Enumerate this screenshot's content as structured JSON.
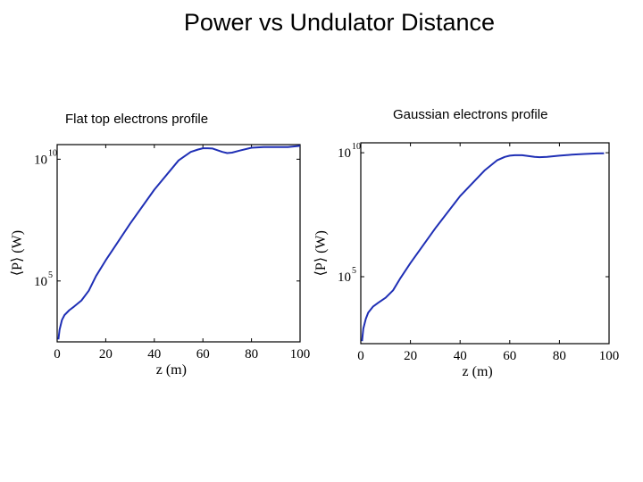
{
  "slide": {
    "title": "Power vs Undulator Distance"
  },
  "chart_data": [
    {
      "type": "line",
      "title": "Flat top electrons profile",
      "xlabel": "z (m)",
      "ylabel": "⟨P⟩ (W)",
      "xlim": [
        0,
        100
      ],
      "ylim_log10": [
        2.5,
        10.6
      ],
      "yscale": "log",
      "grid": false,
      "x_ticks": [
        0,
        20,
        40,
        60,
        80,
        100
      ],
      "x_tick_labels": [
        "0",
        "20",
        "40",
        "60",
        "80",
        "100"
      ],
      "y_ticks": [
        {
          "value": 5,
          "base": "10",
          "exp": "5"
        },
        {
          "value": 10,
          "base": "10",
          "exp": "10"
        }
      ],
      "series": [
        {
          "color": "#1f2fb5",
          "x": [
            0.5,
            1,
            2,
            3,
            5,
            7,
            10,
            13,
            16,
            20,
            30,
            40,
            50,
            55,
            58,
            60,
            62,
            64,
            66,
            68,
            70,
            72,
            75,
            80,
            85,
            90,
            95,
            100
          ],
          "log10_y": [
            2.6,
            3.0,
            3.4,
            3.6,
            3.8,
            3.95,
            4.2,
            4.6,
            5.2,
            5.85,
            7.35,
            8.75,
            9.95,
            10.3,
            10.4,
            10.45,
            10.45,
            10.44,
            10.37,
            10.3,
            10.25,
            10.27,
            10.35,
            10.47,
            10.5,
            10.5,
            10.5,
            10.55
          ]
        }
      ]
    },
    {
      "type": "line",
      "title": "Gaussian electrons profile",
      "xlabel": "z (m)",
      "ylabel": "⟨P⟩ (W)",
      "xlim": [
        0,
        100
      ],
      "ylim_log10": [
        2.3,
        10.4
      ],
      "yscale": "log",
      "grid": false,
      "x_ticks": [
        0,
        20,
        40,
        60,
        80,
        100
      ],
      "x_tick_labels": [
        "0",
        "20",
        "40",
        "60",
        "80",
        "100"
      ],
      "y_ticks": [
        {
          "value": 5,
          "base": "10",
          "exp": "5"
        },
        {
          "value": 10,
          "base": "10",
          "exp": "10"
        }
      ],
      "series": [
        {
          "color": "#1f2fb5",
          "x": [
            0.5,
            1,
            2,
            3,
            5,
            7,
            10,
            13,
            16,
            20,
            30,
            40,
            50,
            55,
            58,
            60,
            62,
            65,
            68,
            70,
            72,
            75,
            80,
            85,
            90,
            95,
            98
          ],
          "log10_y": [
            2.4,
            2.9,
            3.3,
            3.55,
            3.8,
            3.95,
            4.15,
            4.45,
            4.95,
            5.55,
            6.95,
            8.25,
            9.3,
            9.7,
            9.83,
            9.88,
            9.9,
            9.9,
            9.86,
            9.83,
            9.82,
            9.83,
            9.88,
            9.92,
            9.95,
            9.97,
            9.98
          ]
        }
      ]
    }
  ]
}
